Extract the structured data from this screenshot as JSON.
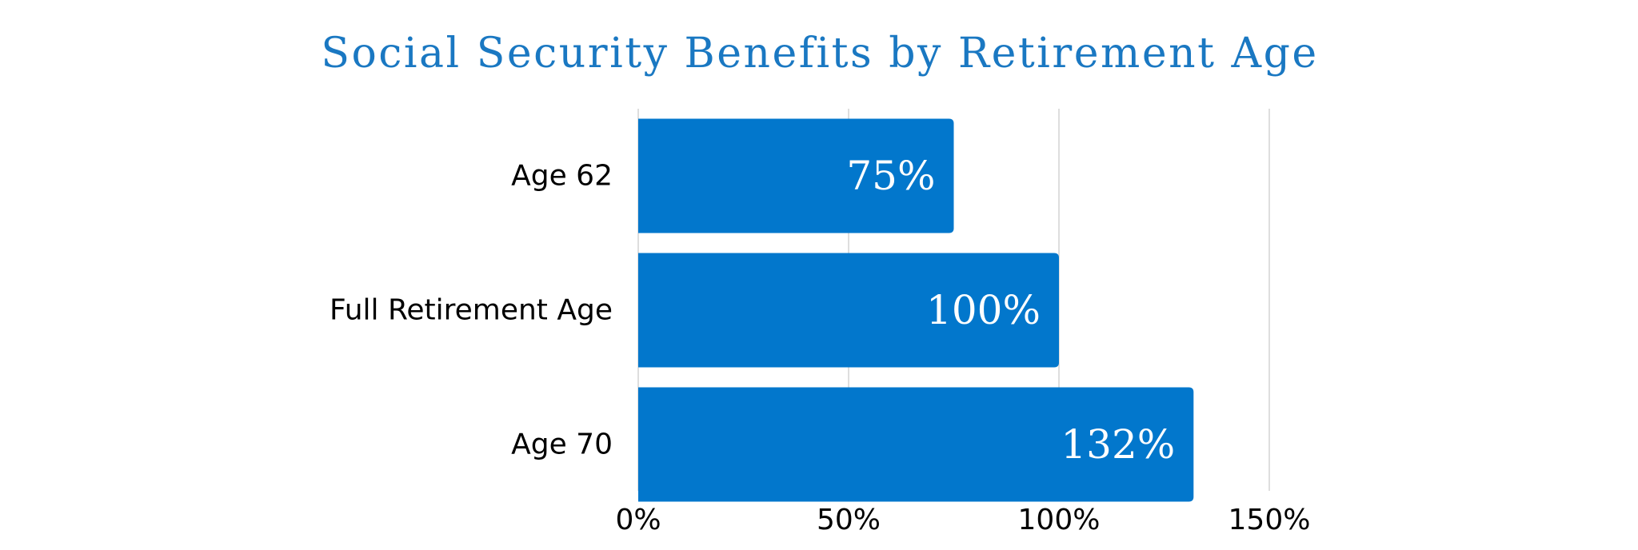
{
  "chart_data": {
    "type": "bar",
    "orientation": "horizontal",
    "title": "Social Security Benefits by Retirement Age",
    "xlabel": "",
    "ylabel": "",
    "categories": [
      "Age 62",
      "Full Retirement Age",
      "Age 70"
    ],
    "values": [
      75,
      100,
      132
    ],
    "data_labels": [
      "75%",
      "100%",
      "132%"
    ],
    "xlim": [
      0,
      150
    ],
    "x_ticks": [
      0,
      50,
      100,
      150
    ],
    "x_tick_labels": [
      "0%",
      "50%",
      "100%",
      "150%"
    ],
    "grid": "vertical",
    "legend": "none",
    "colors": {
      "bar": "#0277CC",
      "title": "#1A78C2",
      "category_text": "#000000",
      "data_label_text": "#FFFFFF",
      "grid": "#D4D4D4"
    }
  }
}
